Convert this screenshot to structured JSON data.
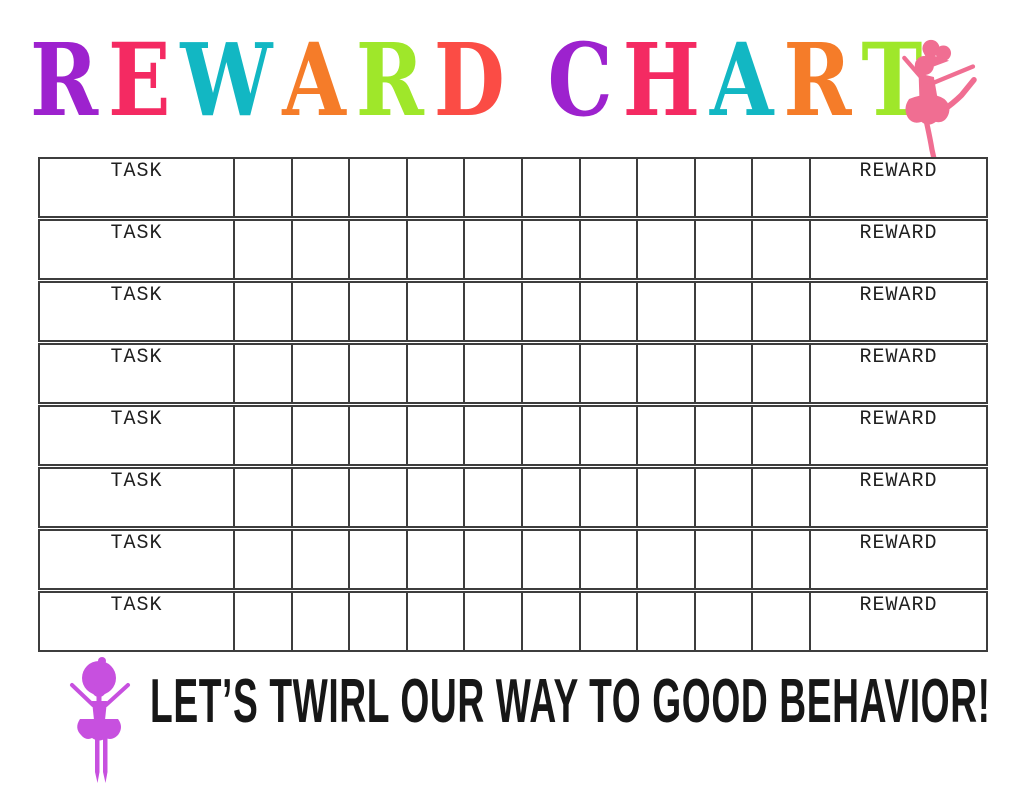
{
  "page": {
    "background": "#ffffff"
  },
  "title": {
    "words": [
      {
        "text": "REWARD",
        "letter_colors": [
          "#9D22CE",
          "#F42A62",
          "#12B7C3",
          "#F57C29",
          "#9FE72A",
          "#FB4C45"
        ]
      },
      {
        "text": "CHART",
        "letter_colors": [
          "#9D22CE",
          "#F42A62",
          "#12B7C3",
          "#F57C29",
          "#9FE72A"
        ]
      }
    ]
  },
  "table": {
    "rows": 8,
    "day_columns": 10,
    "task_label": "TASK",
    "reward_label": "REWARD",
    "border_color": "#3d3d3d",
    "text_color": "#1f1f1f"
  },
  "footer": {
    "tagline": "LET’S TWIRL OUR WAY TO GOOD BEHAVIOR!"
  },
  "icons": {
    "ballerina_top": {
      "name": "ballerina-arabesque-icon",
      "color": "#F06E92"
    },
    "ballerina_bottom": {
      "name": "ballerina-arms-up-icon",
      "color": "#C750DF"
    }
  }
}
